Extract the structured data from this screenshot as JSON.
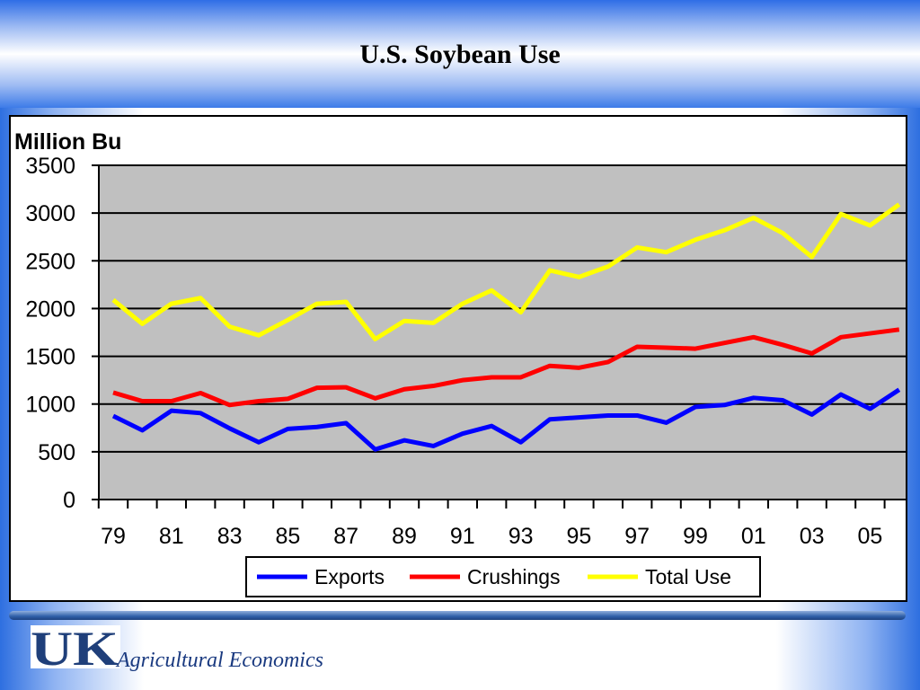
{
  "page": {
    "title": "U.S. Soybean Use",
    "footer_logo": "UK",
    "footer_text": "Agricultural Economics"
  },
  "chart_data": {
    "type": "line",
    "ylabel": "Million Bu",
    "xlabel": "",
    "ylim": [
      0,
      3500
    ],
    "yticks": [
      0,
      500,
      1000,
      1500,
      2000,
      2500,
      3000,
      3500
    ],
    "x": [
      "79",
      "80",
      "81",
      "82",
      "83",
      "84",
      "85",
      "86",
      "87",
      "88",
      "89",
      "90",
      "91",
      "92",
      "93",
      "94",
      "95",
      "96",
      "97",
      "98",
      "99",
      "00",
      "01",
      "02",
      "03",
      "04",
      "05",
      "06"
    ],
    "xtick_labels": [
      "79",
      "81",
      "83",
      "85",
      "87",
      "89",
      "91",
      "93",
      "95",
      "97",
      "99",
      "01",
      "03",
      "05"
    ],
    "grid": true,
    "legend_position": "bottom",
    "plot_background": "#c0c0c0",
    "series": [
      {
        "name": "Exports",
        "color": "#0000ff",
        "values": [
          875,
          725,
          930,
          905,
          745,
          600,
          740,
          760,
          800,
          525,
          620,
          560,
          690,
          770,
          600,
          840,
          860,
          880,
          880,
          805,
          970,
          990,
          1065,
          1040,
          890,
          1100,
          950,
          1150
        ]
      },
      {
        "name": "Crushings",
        "color": "#ff0000",
        "values": [
          1120,
          1030,
          1030,
          1115,
          990,
          1030,
          1055,
          1170,
          1175,
          1060,
          1155,
          1190,
          1250,
          1280,
          1280,
          1400,
          1380,
          1440,
          1600,
          1590,
          1580,
          1640,
          1700,
          1620,
          1530,
          1700,
          1740,
          1780
        ]
      },
      {
        "name": "Total Use",
        "color": "#ffff00",
        "values": [
          2090,
          1840,
          2050,
          2110,
          1810,
          1720,
          1880,
          2050,
          2070,
          1680,
          1870,
          1850,
          2050,
          2190,
          1960,
          2400,
          2330,
          2440,
          2640,
          2590,
          2720,
          2820,
          2950,
          2790,
          2540,
          2990,
          2870,
          3090
        ]
      }
    ]
  }
}
